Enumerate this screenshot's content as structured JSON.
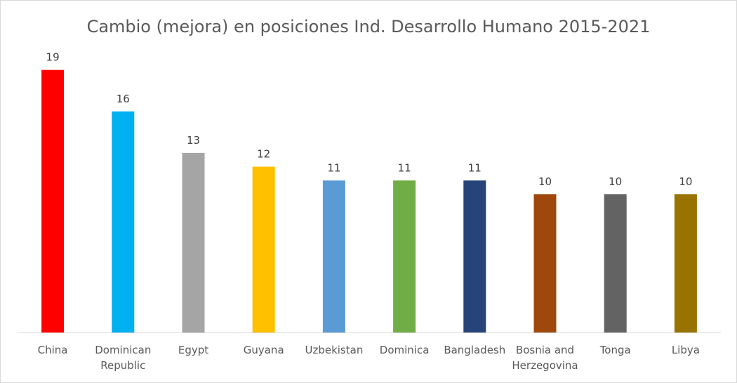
{
  "chart_data": {
    "type": "bar",
    "title": "Cambio (mejora) en posiciones Ind. Desarrollo Humano 2015-2021",
    "xlabel": "",
    "ylabel": "",
    "ylim": [
      0,
      20
    ],
    "grid": false,
    "legend": "none",
    "categories": [
      [
        "China"
      ],
      [
        "Dominican",
        "Republic"
      ],
      [
        "Egypt"
      ],
      [
        "Guyana"
      ],
      [
        "Uzbekistan"
      ],
      [
        "Dominica"
      ],
      [
        "Bangladesh"
      ],
      [
        "Bosnia and",
        "Herzegovina"
      ],
      [
        "Tonga"
      ],
      [
        "Libya"
      ]
    ],
    "values": [
      19,
      16,
      13,
      12,
      11,
      11,
      11,
      10,
      10,
      10
    ],
    "colors": [
      "#ff0000",
      "#00b0f0",
      "#a5a5a5",
      "#ffc000",
      "#5b9bd5",
      "#70ad47",
      "#264478",
      "#9e480e",
      "#636363",
      "#997300"
    ]
  }
}
